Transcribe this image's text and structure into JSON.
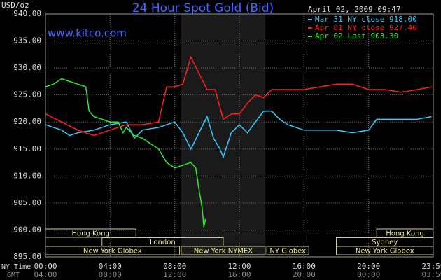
{
  "chart_data": {
    "type": "line",
    "title": "24 Hour Spot Gold (Bid)",
    "date_label": "April 02, 2009 09:47",
    "y_label": "USD/oz",
    "watermark": "www.kitco.com",
    "x_label": "NY Time",
    "x2_label": "GMT",
    "xlim": [
      0,
      24
    ],
    "ylim": [
      895,
      940
    ],
    "xticks": [
      {
        "value": 0,
        "label": "00:00"
      },
      {
        "value": 4,
        "label": "04:00"
      },
      {
        "value": 8,
        "label": "08:00"
      },
      {
        "value": 12,
        "label": "12:00"
      },
      {
        "value": 16,
        "label": "16:00"
      },
      {
        "value": 20,
        "label": "20:00"
      },
      {
        "value": 24,
        "label": "23:59"
      }
    ],
    "x2ticks": [
      {
        "value": 0,
        "label": "04:00"
      },
      {
        "value": 4,
        "label": "08:00"
      },
      {
        "value": 8,
        "label": "12:00"
      },
      {
        "value": 12,
        "label": "16:00"
      },
      {
        "value": 16,
        "label": "20:00"
      },
      {
        "value": 20,
        "label": "00:00"
      },
      {
        "value": 24,
        "label": "03:59"
      }
    ],
    "yticks": [
      {
        "value": 895,
        "label": "895.00"
      },
      {
        "value": 900,
        "label": "900.00"
      },
      {
        "value": 905,
        "label": "905.00"
      },
      {
        "value": 910,
        "label": "910.00"
      },
      {
        "value": 915,
        "label": "915.00"
      },
      {
        "value": 920,
        "label": "920.00"
      },
      {
        "value": 925,
        "label": "925.00"
      },
      {
        "value": 930,
        "label": "930.00"
      },
      {
        "value": 935,
        "label": "935.00"
      },
      {
        "value": 940,
        "label": "940.00"
      }
    ],
    "grid": true,
    "legend": "top-right",
    "shade": [
      8.4,
      13.6
    ],
    "sessions": [
      {
        "label": "Hong Kong",
        "start": 0,
        "end": 5.6,
        "row": 0
      },
      {
        "label": "Hong Kong",
        "start": 20.5,
        "end": 24,
        "row": 0
      },
      {
        "label": "London",
        "start": 3.5,
        "end": 11,
        "row": 1
      },
      {
        "label": "Sydney",
        "start": 18,
        "end": 24,
        "row": 1
      },
      {
        "label": "New York Globex",
        "start": 0,
        "end": 8.3,
        "row": 2
      },
      {
        "label": "New York NYMEX",
        "start": 8.4,
        "end": 13.6,
        "row": 2
      },
      {
        "label": "NY Globex",
        "start": 13.7,
        "end": 16.3,
        "row": 2
      },
      {
        "label": "New York Globex",
        "start": 18,
        "end": 24,
        "row": 2
      }
    ],
    "series": [
      {
        "name": "Mar 31 NY close 918.00",
        "color": "#33ccff",
        "x": [
          0,
          1,
          1.5,
          2,
          3,
          4,
          5,
          5.5,
          6,
          7,
          8,
          8.5,
          9,
          9.5,
          10,
          10.4,
          10.8,
          11,
          11.5,
          12,
          12.5,
          13,
          13.5,
          14,
          14.5,
          15,
          16,
          17,
          18,
          19,
          20,
          20.5,
          21,
          22,
          23,
          23.9
        ],
        "values": [
          919.5,
          918.5,
          917.5,
          918,
          918.5,
          919.5,
          920,
          917,
          918.5,
          919,
          920,
          918,
          915,
          918,
          921,
          917,
          915,
          913.5,
          918,
          919.5,
          918,
          920,
          922,
          922,
          920.5,
          919.5,
          918.5,
          918.5,
          918.5,
          918,
          918.5,
          920.5,
          920.5,
          920.5,
          920.5,
          921
        ]
      },
      {
        "name": "Apr 01 NY close 927.40",
        "color": "#ff2020",
        "x": [
          0,
          1,
          2,
          3,
          4,
          5,
          6,
          7,
          7.3,
          7.5,
          8,
          8.5,
          9,
          9.5,
          10,
          10.5,
          11,
          11.5,
          12,
          12.5,
          13,
          13.5,
          14,
          15,
          16,
          17,
          18,
          19,
          20,
          21,
          22,
          23,
          23.9
        ],
        "values": [
          921.5,
          920,
          918.5,
          917.5,
          918.5,
          919.5,
          919.5,
          920,
          924,
          926.5,
          926.5,
          927,
          932,
          929,
          926,
          926,
          920.5,
          921.5,
          921.5,
          923.5,
          925,
          924.5,
          926,
          926,
          926,
          926.5,
          927,
          927,
          926,
          926,
          925.5,
          926,
          926.5
        ]
      },
      {
        "name": "Apr 02 Last 903.30",
        "color": "#22ee22",
        "x": [
          0,
          0.5,
          1,
          1.5,
          2,
          2.5,
          2.7,
          3,
          3.5,
          4,
          4.5,
          4.8,
          5,
          5.5,
          6,
          6.5,
          7,
          7.2,
          7.5,
          8,
          8.5,
          9,
          9.3,
          9.5,
          9.7,
          9.8,
          9.9
        ],
        "values": [
          926.5,
          927,
          928,
          927.5,
          927,
          926.5,
          922,
          921,
          920.5,
          920,
          920,
          918,
          919,
          917.5,
          917,
          916,
          915,
          914,
          912.5,
          911.5,
          912,
          912.5,
          911.5,
          907.5,
          904,
          900.5,
          902
        ]
      }
    ]
  }
}
